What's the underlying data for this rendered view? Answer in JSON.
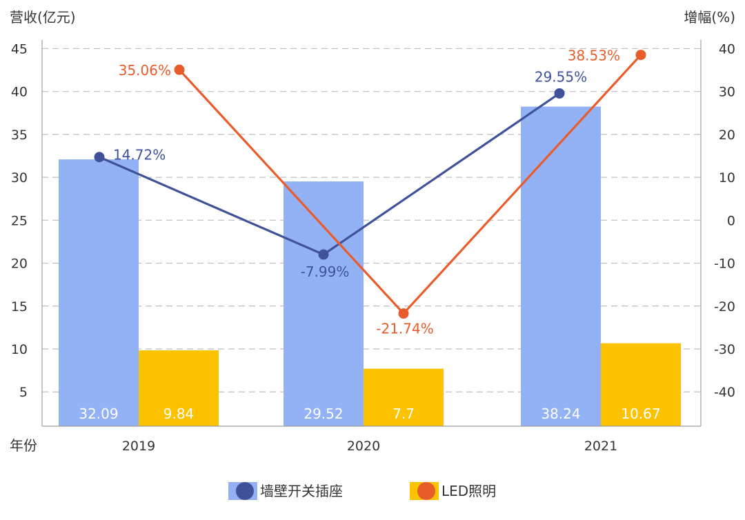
{
  "chart_data": {
    "type": "bar+line",
    "y_left_title": "营收(亿元)",
    "y_right_title": "增幅(%)",
    "x_title": "年份",
    "categories": [
      "2019",
      "2020",
      "2021"
    ],
    "y_left_range": [
      1,
      46
    ],
    "y_right_range": [
      -48,
      42
    ],
    "y_left_ticks": [
      "5",
      "10",
      "15",
      "20",
      "25",
      "30",
      "35",
      "40",
      "45"
    ],
    "y_right_ticks": [
      "40",
      "30",
      "20",
      "10",
      "0",
      "-10",
      "-20",
      "-30",
      "-40"
    ],
    "grid": "dashed horizontal",
    "bar_series": [
      {
        "name": "墙壁开关插座",
        "color": "#93b2f5",
        "values": [
          32.09,
          29.52,
          38.24
        ],
        "labels": [
          "32.09",
          "29.52",
          "38.24"
        ]
      },
      {
        "name": "LED照明",
        "color": "#fcc200",
        "values": [
          9.84,
          7.7,
          10.67
        ],
        "labels": [
          "9.84",
          "7.7",
          "10.67"
        ]
      }
    ],
    "line_series": [
      {
        "name": "墙壁开关插座",
        "color": "#3f5299",
        "values": [
          14.72,
          -7.99,
          29.55
        ],
        "labels": [
          "14.72%",
          "-7.99%",
          "29.55%"
        ]
      },
      {
        "name": "LED照明",
        "color": "#e85c2c",
        "values": [
          35.06,
          -21.74,
          38.53
        ],
        "labels": [
          "35.06%",
          "-21.74%",
          "38.53%"
        ]
      }
    ],
    "legend": [
      {
        "name": "墙壁开关插座",
        "bar_color": "#93b2f5",
        "dot_color": "#3f5299"
      },
      {
        "name": "LED照明",
        "bar_color": "#fcc200",
        "dot_color": "#e85c2c"
      }
    ],
    "legend_position": "bottom-center"
  }
}
